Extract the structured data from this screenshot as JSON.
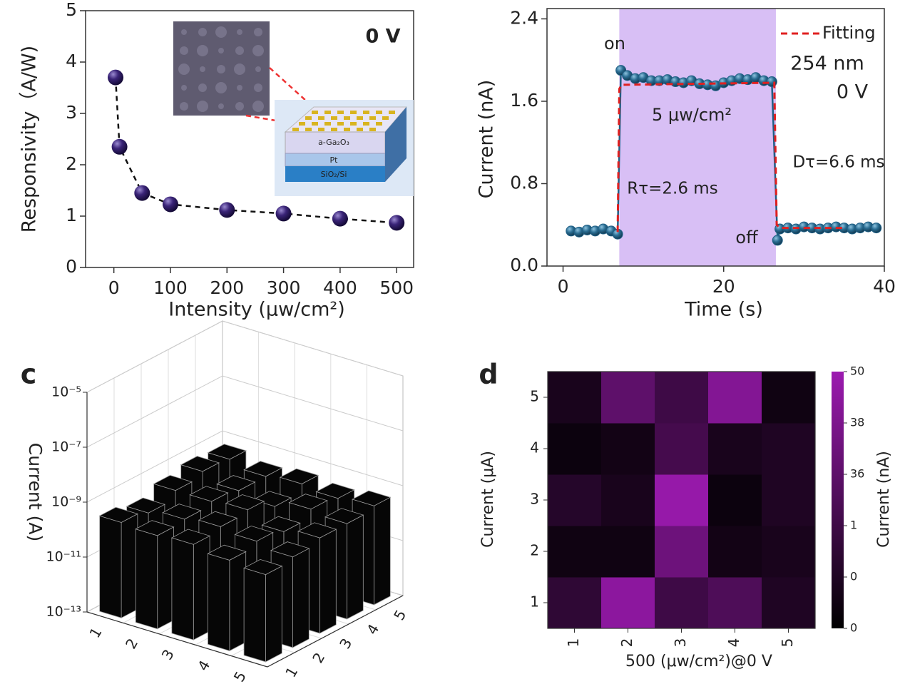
{
  "chart_data": [
    {
      "type": "scatter",
      "xlabel": "Intensity (μw/cm²)",
      "ylabel": "Responsivity（A/W)",
      "annotation": "0 V",
      "inset_labels": [
        "a-Ga₂O₃",
        "Pt",
        "SiO₂/Si"
      ],
      "x": [
        3,
        10,
        50,
        100,
        200,
        300,
        400,
        500
      ],
      "values": [
        3.7,
        2.35,
        1.45,
        1.23,
        1.12,
        1.05,
        0.95,
        0.87
      ],
      "color": "#2b175e",
      "xlim": [
        -50,
        530
      ],
      "xticks": [
        0,
        100,
        200,
        300,
        400,
        500
      ],
      "ylim": [
        0,
        5
      ],
      "yticks": [
        0,
        1,
        2,
        3,
        4,
        5
      ]
    },
    {
      "type": "line",
      "xlabel": "Time (s)",
      "ylabel": "Current (nA)",
      "annotations": [
        "on",
        "off",
        "254 nm",
        "0 V",
        "5 μw/cm²",
        "Rτ=2.6 ms",
        "Dτ=6.6 ms"
      ],
      "highlight": [
        7,
        26.5
      ],
      "highlight_color": "#d8bff5",
      "series": [
        {
          "color": "#1f5f85",
          "marker": true,
          "x": [
            1,
            2,
            3,
            4,
            5,
            6,
            6.8,
            7.2,
            8,
            9,
            10,
            11,
            12,
            13,
            14,
            15,
            16,
            17,
            18,
            19,
            20,
            21,
            22,
            23,
            24,
            25,
            26,
            26.7,
            27,
            28,
            29,
            30,
            31,
            32,
            33,
            34,
            35,
            36,
            37,
            38,
            39
          ],
          "values": [
            0.34,
            0.33,
            0.35,
            0.34,
            0.36,
            0.34,
            0.31,
            1.9,
            1.85,
            1.82,
            1.83,
            1.8,
            1.8,
            1.81,
            1.79,
            1.78,
            1.8,
            1.77,
            1.76,
            1.75,
            1.78,
            1.8,
            1.82,
            1.81,
            1.83,
            1.8,
            1.79,
            0.25,
            0.36,
            0.37,
            0.36,
            0.38,
            0.37,
            0.36,
            0.37,
            0.38,
            0.37,
            0.36,
            0.37,
            0.38,
            0.37
          ]
        },
        {
          "name": "Fitting",
          "color": "#e02020",
          "dashed": true,
          "x": [
            6.8,
            7.0,
            7.3,
            26.3,
            26.6,
            27,
            35
          ],
          "values": [
            0.33,
            1.72,
            1.76,
            1.78,
            0.4,
            0.37,
            0.37
          ]
        }
      ],
      "xlim": [
        -2,
        40
      ],
      "xticks": [
        0,
        20,
        40
      ],
      "ylim": [
        0,
        2.5
      ],
      "yticks": [
        {
          "value": 0,
          "label": "0.0"
        },
        0.8,
        1.6,
        2.4
      ]
    },
    {
      "type": "bar3d",
      "panel_label": "c",
      "ylabel": "Current (A)",
      "rows": [
        "1",
        "2",
        "3",
        "4",
        "5"
      ],
      "columns": [
        "1",
        "2",
        "3",
        "4",
        "5"
      ],
      "values": [
        [
          3e-10,
          2e-10,
          4e-10,
          6e-10,
          5e-10
        ],
        [
          2.5e-10,
          3e-10,
          4e-10,
          3e-10,
          3e-10
        ],
        [
          3e-10,
          4e-10,
          5e-10,
          2e-10,
          4e-10
        ],
        [
          2e-10,
          3e-10,
          2e-10,
          4e-10,
          3e-10
        ],
        [
          1.5e-10,
          2e-10,
          3e-10,
          3e-10,
          4e-10
        ]
      ],
      "color": "#060606",
      "edge_color": "#9a9a9a",
      "log_scale": true,
      "ylim": [
        1e-13,
        1e-05
      ],
      "yticks": [
        {
          "value": 1e-13,
          "label": "10⁻¹³"
        },
        {
          "value": 1e-11,
          "label": "10⁻¹¹"
        },
        {
          "value": 1e-09,
          "label": "10⁻⁹"
        },
        {
          "value": 1e-07,
          "label": "10⁻⁷"
        },
        {
          "value": 1e-05,
          "label": "10⁻⁵"
        }
      ]
    },
    {
      "type": "heatmap",
      "panel_label": "d",
      "xlabel": "500 (μw/cm²)@0 V",
      "ylabel": "Current (μA)",
      "colorbar_label": "Current (nA)",
      "x_categories": [
        "1",
        "2",
        "3",
        "4",
        "5"
      ],
      "y_categories": [
        "1",
        "2",
        "3",
        "4",
        "5"
      ],
      "values": [
        [
          15,
          45,
          20,
          25,
          10
        ],
        [
          5,
          5,
          35,
          6,
          8
        ],
        [
          12,
          8,
          48,
          4,
          10
        ],
        [
          4,
          6,
          22,
          8,
          10
        ],
        [
          8,
          30,
          20,
          42,
          5
        ]
      ],
      "clim": [
        0,
        50
      ],
      "colors": [
        "#000000",
        "#9c1ab0"
      ],
      "colorbar_labels": [
        "0",
        "0",
        "1",
        "36",
        "38",
        "50"
      ]
    }
  ]
}
